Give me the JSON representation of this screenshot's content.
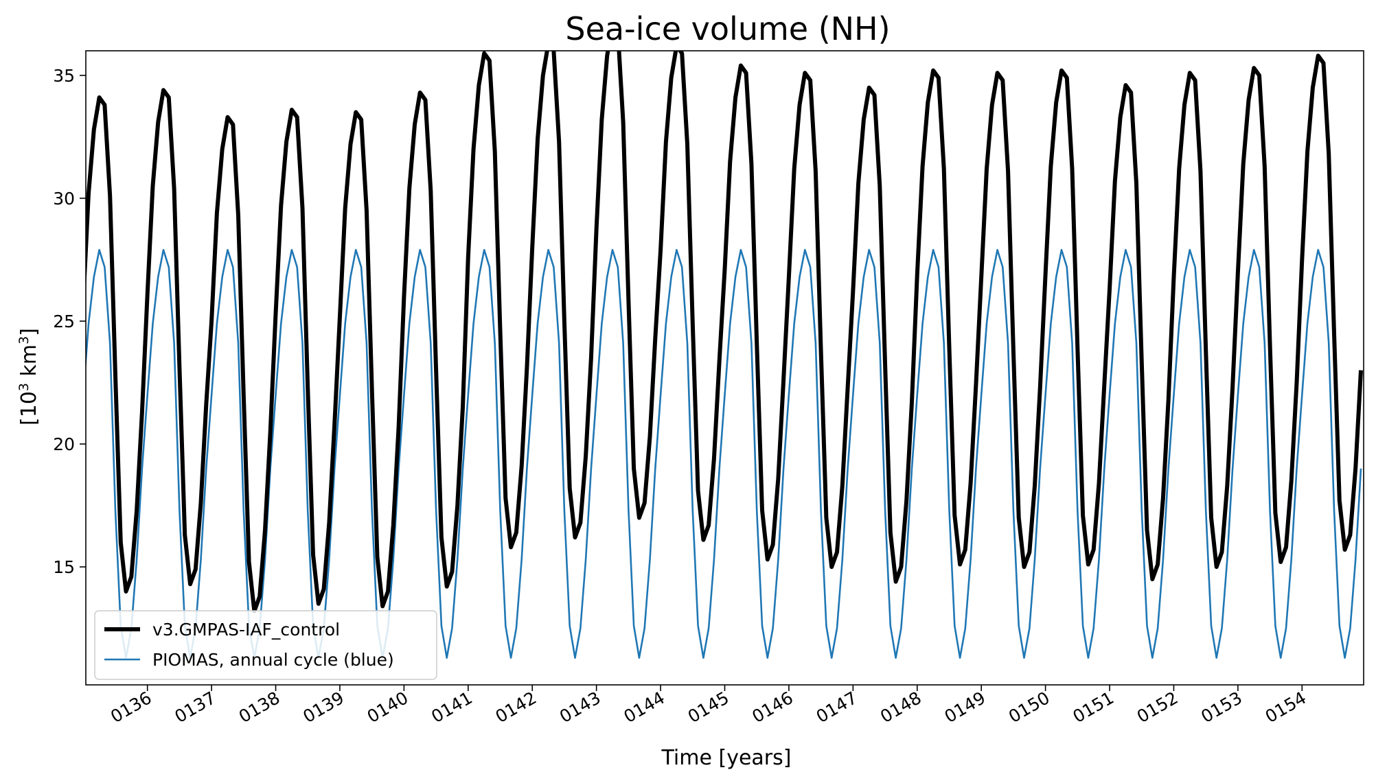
{
  "chart_data": {
    "type": "line",
    "title": "Sea-ice volume (NH)",
    "xlabel": "Time [years]",
    "ylabel_base": "[10",
    "ylabel_sup": "3",
    "ylabel_unit": " km",
    "ylabel_sup2": "3",
    "ylabel_end": "]",
    "xlim": [
      135.04,
      154.96
    ],
    "ylim": [
      10.2,
      36.0
    ],
    "x_ticks": [
      136,
      137,
      138,
      139,
      140,
      141,
      142,
      143,
      144,
      145,
      146,
      147,
      148,
      149,
      150,
      151,
      152,
      153,
      154
    ],
    "x_tick_labels": [
      "0136",
      "0137",
      "0138",
      "0139",
      "0140",
      "0141",
      "0142",
      "0143",
      "0144",
      "0145",
      "0146",
      "0147",
      "0148",
      "0149",
      "0150",
      "0151",
      "0152",
      "0153",
      "0154"
    ],
    "y_ticks": [
      15,
      20,
      25,
      30,
      35
    ],
    "y_tick_labels": [
      "15",
      "20",
      "25",
      "30",
      "35"
    ],
    "grid": false,
    "legend_position": "lower-left",
    "series": [
      {
        "name": "v3.GMPAS-IAF_control",
        "color": "#000000",
        "style": "thick",
        "year_start": 135,
        "monthly_offsets": [
          -6.0,
          -1.6,
          1.0,
          2.3,
          2.0,
          -1.7,
          -9.0,
          -15.8,
          -17.8,
          -17.2,
          -14.5,
          -10.5
        ],
        "annual_max": [
          31.8,
          32.1,
          31.0,
          31.3,
          31.2,
          32.0,
          33.6,
          34.0,
          34.8,
          33.9,
          33.1,
          32.8,
          32.2,
          32.9,
          32.8,
          32.9,
          32.3,
          32.8,
          33.0,
          33.5
        ]
      },
      {
        "name": "PIOMAS, annual cycle (blue)",
        "color": "#1f77b4",
        "style": "thin",
        "year_start": 135,
        "monthly_values": [
          22.0,
          24.9,
          26.8,
          27.9,
          27.2,
          24.1,
          17.3,
          12.6,
          11.3,
          12.5,
          15.3,
          19.0
        ]
      }
    ]
  }
}
